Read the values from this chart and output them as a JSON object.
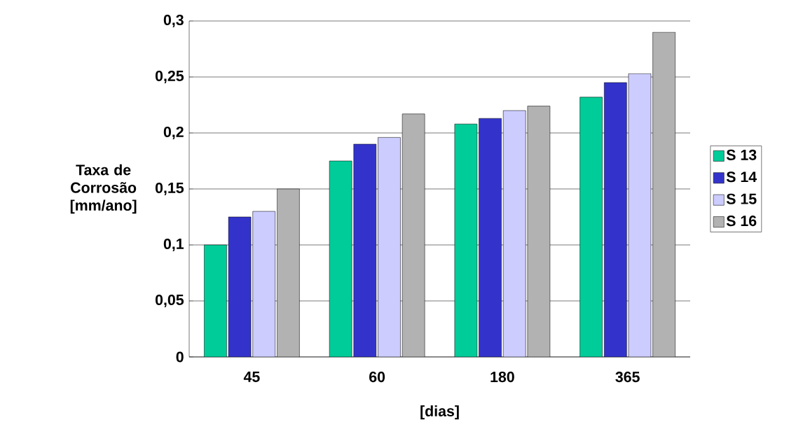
{
  "chart_data": {
    "type": "bar",
    "xlabel": "[dias]",
    "ylabel": "Taxa de Corrosão [mm/ano]",
    "categories": [
      "45",
      "60",
      "180",
      "365"
    ],
    "series": [
      {
        "name": "S 13",
        "color": "#00cc99",
        "values": [
          0.1,
          0.175,
          0.208,
          0.232
        ]
      },
      {
        "name": "S 14",
        "color": "#3333cc",
        "values": [
          0.125,
          0.19,
          0.213,
          0.245
        ]
      },
      {
        "name": "S 15",
        "color": "#ccccff",
        "values": [
          0.13,
          0.196,
          0.22,
          0.253
        ]
      },
      {
        "name": "S 16",
        "color": "#b2b2b2",
        "values": [
          0.15,
          0.217,
          0.224,
          0.29
        ]
      }
    ],
    "ylim": [
      0,
      0.3
    ],
    "yticks": [
      {
        "value": 0,
        "label": "0"
      },
      {
        "value": 0.05,
        "label": "0,05"
      },
      {
        "value": 0.1,
        "label": "0,1"
      },
      {
        "value": 0.15,
        "label": "0,15"
      },
      {
        "value": 0.2,
        "label": "0,2"
      },
      {
        "value": 0.25,
        "label": "0,25"
      },
      {
        "value": 0.3,
        "label": "0,3"
      }
    ],
    "grid": "y",
    "legend": "right"
  }
}
